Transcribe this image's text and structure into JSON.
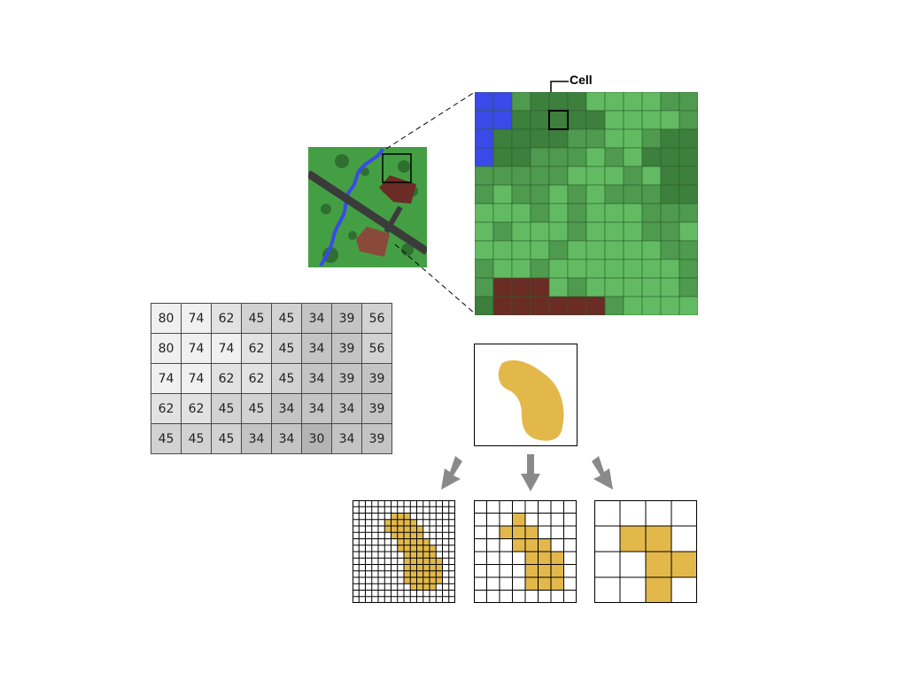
{
  "diagram": {
    "cell_label": "Cell",
    "value_grid": [
      [
        80,
        74,
        62,
        45,
        45,
        34,
        39,
        56
      ],
      [
        80,
        74,
        74,
        62,
        45,
        34,
        39,
        56
      ],
      [
        74,
        74,
        62,
        62,
        45,
        34,
        39,
        39
      ],
      [
        62,
        62,
        45,
        45,
        34,
        34,
        34,
        39
      ],
      [
        45,
        45,
        45,
        34,
        34,
        30,
        34,
        39
      ]
    ],
    "colors": {
      "water": "#3a4ae8",
      "grass_dark": "#3d7f3d",
      "grass_mid": "#4e9a4e",
      "grass_light": "#62bb62",
      "building": "#6a2c24",
      "road": "#3b3b3b",
      "feature_fill": "#e3b84a",
      "arrow": "#8a8a8a"
    }
  }
}
